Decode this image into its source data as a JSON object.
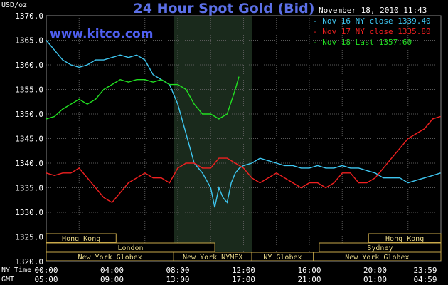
{
  "chart_data": {
    "type": "line",
    "title": "24 Hour Spot Gold (Bid)",
    "ylabel": "USD/oz",
    "ylim": [
      1320,
      1370
    ],
    "yticks": [
      "1320.0",
      "1325.0",
      "1330.0",
      "1335.0",
      "1340.0",
      "1345.0",
      "1350.0",
      "1355.0",
      "1360.0",
      "1365.0",
      "1370.0"
    ],
    "x_ny_labels": [
      "00:00",
      "04:00",
      "08:00",
      "12:00",
      "16:00",
      "20:00",
      "23:59"
    ],
    "x_gmt_labels": [
      "05:00",
      "09:00",
      "13:00",
      "17:00",
      "21:00",
      "01:00",
      "04:59"
    ],
    "x_row_titles": [
      "NY Time",
      "GMT"
    ],
    "date_stamp": "November 18, 2010 11:43",
    "watermark": "www.kitco.com",
    "grid": true,
    "legend_position": "top-right",
    "series": [
      {
        "name": "Nov 16 NY close 1339.40",
        "color": "#3ec6f0",
        "x": [
          0,
          0.5,
          1,
          1.5,
          2,
          2.5,
          3,
          3.5,
          4,
          4.5,
          5,
          5.5,
          6,
          6.5,
          7,
          7.5,
          8,
          8.5,
          9,
          9.5,
          10,
          10.25,
          10.5,
          10.75,
          11,
          11.25,
          11.5,
          11.75,
          12,
          12.5,
          13,
          13.5,
          14,
          14.5,
          15,
          15.5,
          16,
          16.5,
          17,
          17.5,
          18,
          18.5,
          19,
          19.5,
          20,
          20.5,
          21,
          21.5,
          22,
          22.5,
          23,
          23.5,
          23.98
        ],
        "y": [
          1365,
          1363,
          1361,
          1360,
          1359.5,
          1360,
          1361,
          1361,
          1361.5,
          1362,
          1361.5,
          1362,
          1361,
          1358,
          1357,
          1356,
          1352,
          1346,
          1340,
          1338,
          1335,
          1331,
          1335,
          1333,
          1332,
          1336,
          1338,
          1339,
          1339.5,
          1340,
          1341,
          1340.5,
          1340,
          1339.5,
          1339.5,
          1339,
          1339,
          1339.5,
          1339,
          1339,
          1339.5,
          1339,
          1339,
          1338.5,
          1338,
          1337,
          1337,
          1337,
          1336,
          1336.5,
          1337,
          1337.5,
          1338
        ]
      },
      {
        "name": "Nov 17 NY close 1335.80",
        "color": "#f02020",
        "x": [
          0,
          0.5,
          1,
          1.5,
          2,
          2.5,
          3,
          3.5,
          4,
          4.5,
          5,
          5.5,
          6,
          6.5,
          7,
          7.5,
          8,
          8.5,
          9,
          9.5,
          10,
          10.5,
          11,
          11.5,
          12,
          12.5,
          13,
          13.5,
          14,
          14.5,
          15,
          15.5,
          16,
          16.5,
          17,
          17.5,
          18,
          18.5,
          19,
          19.5,
          20,
          20.5,
          21,
          21.5,
          22,
          22.5,
          23,
          23.5,
          23.98
        ],
        "y": [
          1338,
          1337.5,
          1338,
          1338,
          1339,
          1337,
          1335,
          1333,
          1332,
          1334,
          1336,
          1337,
          1338,
          1337,
          1337,
          1336,
          1339,
          1340,
          1340,
          1339,
          1339,
          1341,
          1341,
          1340,
          1339,
          1337,
          1336,
          1337,
          1338,
          1337,
          1336,
          1335,
          1336,
          1336,
          1335,
          1336,
          1338,
          1338,
          1336,
          1336,
          1337,
          1339,
          1341,
          1343,
          1345,
          1346,
          1347,
          1349,
          1349.5
        ]
      },
      {
        "name": "Nov 18 Last 1357.60",
        "color": "#22e022",
        "x": [
          0,
          0.5,
          1,
          1.5,
          2,
          2.5,
          3,
          3.5,
          4,
          4.5,
          5,
          5.5,
          6,
          6.5,
          7,
          7.5,
          8,
          8.5,
          9,
          9.5,
          10,
          10.5,
          11,
          11.5,
          11.72
        ],
        "y": [
          1349,
          1349.5,
          1351,
          1352,
          1353,
          1352,
          1353,
          1355,
          1356,
          1357,
          1356.5,
          1357,
          1357,
          1356.5,
          1357,
          1356,
          1356,
          1355,
          1352,
          1350,
          1350,
          1349,
          1350,
          1355,
          1357.6
        ]
      }
    ],
    "sessions": [
      {
        "row": 0,
        "label": "Hong Kong",
        "start": 0,
        "end": 4.25
      },
      {
        "row": 0,
        "label": "Hong Kong",
        "start": 19.6,
        "end": 24
      },
      {
        "row": 1,
        "label": "London",
        "start": 0,
        "end": 10.25
      },
      {
        "row": 1,
        "label": "Sydney",
        "start": 16.6,
        "end": 24
      },
      {
        "row": 2,
        "label": "New York Globex",
        "start": 0,
        "end": 7.75
      },
      {
        "row": 2,
        "label": "New York NYMEX",
        "start": 7.75,
        "end": 12.5
      },
      {
        "row": 2,
        "label": "NY Globex",
        "start": 12.5,
        "end": 16.25
      },
      {
        "row": 2,
        "label": "New York Globex",
        "start": 16.25,
        "end": 24
      }
    ],
    "nymex_shade": [
      7.75,
      12.5
    ]
  }
}
